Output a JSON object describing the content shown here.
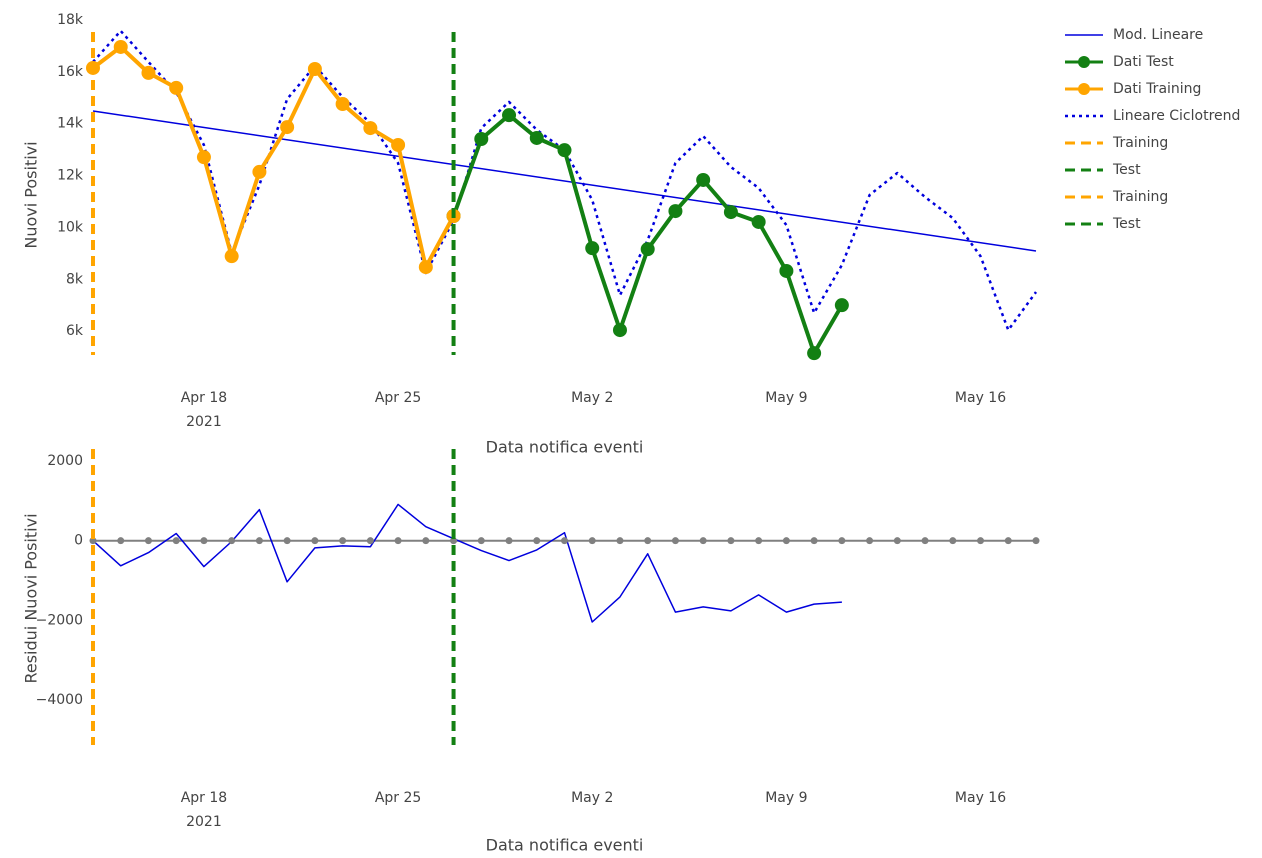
{
  "chart_data": [
    {
      "type": "line",
      "ylabel": "Nuovi Positivi",
      "xlabel": "Data notifica eventi",
      "xlim": [
        "2021-04-14",
        "2021-05-18"
      ],
      "xticks": [
        {
          "value": "2021-04-18",
          "label": "Apr 18"
        },
        {
          "value": "2021-04-25",
          "label": "Apr 25"
        },
        {
          "value": "2021-05-02",
          "label": "May 2"
        },
        {
          "value": "2021-05-09",
          "label": "May 9"
        },
        {
          "value": "2021-05-16",
          "label": "May 16"
        }
      ],
      "xtick_year": "2021",
      "ylim": [
        4500,
        18000
      ],
      "yticks": [
        {
          "value": 6000,
          "label": "6k"
        },
        {
          "value": 8000,
          "label": "8k"
        },
        {
          "value": 10000,
          "label": "10k"
        },
        {
          "value": 12000,
          "label": "12k"
        },
        {
          "value": 14000,
          "label": "14k"
        },
        {
          "value": 16000,
          "label": "16k"
        },
        {
          "value": 18000,
          "label": "18k"
        }
      ],
      "series": [
        {
          "name": "Mod. Lineare",
          "color": "#0000dd",
          "dash": "solid",
          "width": 1.5,
          "markers": false,
          "x": [
            "2021-04-14",
            "2021-05-18"
          ],
          "values": [
            14490,
            9090
          ]
        },
        {
          "name": "Dati Test",
          "color": "#138013",
          "dash": "solid",
          "width": 4,
          "markers": true,
          "x": [
            "2021-04-27",
            "2021-04-28",
            "2021-04-29",
            "2021-04-30",
            "2021-05-01",
            "2021-05-02",
            "2021-05-03",
            "2021-05-04",
            "2021-05-05",
            "2021-05-06",
            "2021-05-07",
            "2021-05-08",
            "2021-05-09",
            "2021-05-10",
            "2021-05-11"
          ],
          "values": [
            10440,
            13410,
            14330,
            13450,
            12980,
            9200,
            6040,
            9160,
            10630,
            11830,
            10590,
            10210,
            8320,
            5150,
            7000
          ]
        },
        {
          "name": "Dati Training",
          "color": "#ffa500",
          "dash": "solid",
          "width": 4,
          "markers": true,
          "x": [
            "2021-04-14",
            "2021-04-15",
            "2021-04-16",
            "2021-04-17",
            "2021-04-18",
            "2021-04-19",
            "2021-04-20",
            "2021-04-21",
            "2021-04-22",
            "2021-04-23",
            "2021-04-24",
            "2021-04-25",
            "2021-04-26",
            "2021-04-27"
          ],
          "values": [
            16150,
            16960,
            15960,
            15380,
            12710,
            8890,
            12140,
            13870,
            16110,
            14760,
            13830,
            13180,
            8470,
            10440
          ]
        },
        {
          "name": "Lineare Ciclotrend",
          "color": "#0000dd",
          "dash": "dot",
          "width": 2.5,
          "markers": false,
          "x": [
            "2021-04-14",
            "2021-04-15",
            "2021-04-16",
            "2021-04-17",
            "2021-04-18",
            "2021-04-19",
            "2021-04-20",
            "2021-04-21",
            "2021-04-22",
            "2021-04-23",
            "2021-04-24",
            "2021-04-25",
            "2021-04-26",
            "2021-04-27",
            "2021-04-28",
            "2021-04-29",
            "2021-04-30",
            "2021-05-01",
            "2021-05-02",
            "2021-05-03",
            "2021-05-04",
            "2021-05-05",
            "2021-05-06",
            "2021-05-07",
            "2021-05-08",
            "2021-05-09",
            "2021-05-10",
            "2021-05-11",
            "2021-05-12",
            "2021-05-13",
            "2021-05-14",
            "2021-05-15",
            "2021-05-16",
            "2021-05-17",
            "2021-05-18"
          ],
          "values": [
            16380,
            17580,
            16380,
            15220,
            13180,
            9010,
            11630,
            14950,
            16230,
            15030,
            14030,
            12480,
            8240,
            10280,
            13830,
            14840,
            13760,
            12980,
            11060,
            7390,
            9510,
            12480,
            13520,
            12330,
            11520,
            10090,
            6700,
            8550,
            11250,
            12100,
            11170,
            10360,
            8890,
            6040,
            7510
          ]
        }
      ],
      "vlines": [
        {
          "name": "Training",
          "color": "#ffa500",
          "x": "2021-04-14"
        },
        {
          "name": "Test",
          "color": "#138013",
          "x": "2021-04-27"
        }
      ]
    },
    {
      "type": "line",
      "ylabel": "Residui Nuovi Positivi",
      "xlabel": "Data notifica eventi",
      "xlim": [
        "2021-04-14",
        "2021-05-18"
      ],
      "xticks": [
        {
          "value": "2021-04-18",
          "label": "Apr 18"
        },
        {
          "value": "2021-04-25",
          "label": "Apr 25"
        },
        {
          "value": "2021-05-02",
          "label": "May 2"
        },
        {
          "value": "2021-05-09",
          "label": "May 9"
        },
        {
          "value": "2021-05-16",
          "label": "May 16"
        }
      ],
      "xtick_year": "2021",
      "ylim": [
        -5500,
        2600
      ],
      "yticks": [
        {
          "value": -4000,
          "label": "−4000"
        },
        {
          "value": -2000,
          "label": "−2000"
        },
        0,
        2000
      ],
      "series": [
        {
          "color": "#808080",
          "dash": "solid",
          "width": 2,
          "markers": true,
          "marker_size": 3.5,
          "x": [
            "2021-04-14",
            "2021-04-15",
            "2021-04-16",
            "2021-04-17",
            "2021-04-18",
            "2021-04-19",
            "2021-04-20",
            "2021-04-21",
            "2021-04-22",
            "2021-04-23",
            "2021-04-24",
            "2021-04-25",
            "2021-04-26",
            "2021-04-27",
            "2021-04-28",
            "2021-04-29",
            "2021-04-30",
            "2021-05-01",
            "2021-05-02",
            "2021-05-03",
            "2021-05-04",
            "2021-05-05",
            "2021-05-06",
            "2021-05-07",
            "2021-05-08",
            "2021-05-09",
            "2021-05-10",
            "2021-05-11",
            "2021-05-12",
            "2021-05-13",
            "2021-05-14",
            "2021-05-15",
            "2021-05-16",
            "2021-05-17",
            "2021-05-18"
          ],
          "values": [
            0,
            0,
            0,
            0,
            0,
            0,
            0,
            0,
            0,
            0,
            0,
            0,
            0,
            0,
            0,
            0,
            0,
            0,
            0,
            0,
            0,
            0,
            0,
            0,
            0,
            0,
            0,
            0,
            0,
            0,
            0,
            0,
            0,
            0,
            0
          ]
        },
        {
          "color": "#0000dd",
          "dash": "solid",
          "width": 1.5,
          "markers": false,
          "x": [
            "2021-04-14",
            "2021-04-15",
            "2021-04-16",
            "2021-04-17",
            "2021-04-18",
            "2021-04-19",
            "2021-04-20",
            "2021-04-21",
            "2021-04-22",
            "2021-04-23",
            "2021-04-24",
            "2021-04-25",
            "2021-04-26",
            "2021-04-27",
            "2021-04-28",
            "2021-04-29",
            "2021-04-30",
            "2021-05-01",
            "2021-05-02",
            "2021-05-03",
            "2021-05-04",
            "2021-05-05",
            "2021-05-06",
            "2021-05-07",
            "2021-05-08",
            "2021-05-09",
            "2021-05-10",
            "2021-05-11"
          ],
          "values": [
            0,
            -630,
            -300,
            180,
            -650,
            -20,
            780,
            -1030,
            -180,
            -130,
            -150,
            910,
            350,
            50,
            -250,
            -500,
            -230,
            200,
            -2040,
            -1410,
            -330,
            -1790,
            -1660,
            -1760,
            -1360,
            -1790,
            -1590,
            -1540
          ]
        }
      ],
      "vlines": [
        {
          "name": "Training",
          "color": "#ffa500",
          "x": "2021-04-14"
        },
        {
          "name": "Test",
          "color": "#138013",
          "x": "2021-04-27"
        }
      ]
    }
  ]
}
